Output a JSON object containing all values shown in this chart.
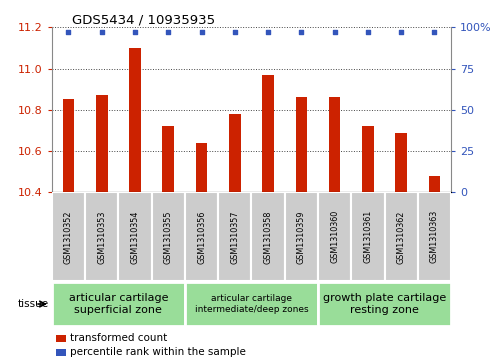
{
  "title": "GDS5434 / 10935935",
  "samples": [
    "GSM1310352",
    "GSM1310353",
    "GSM1310354",
    "GSM1310355",
    "GSM1310356",
    "GSM1310357",
    "GSM1310358",
    "GSM1310359",
    "GSM1310360",
    "GSM1310361",
    "GSM1310362",
    "GSM1310363"
  ],
  "bar_values": [
    10.85,
    10.87,
    11.1,
    10.72,
    10.64,
    10.78,
    10.97,
    10.86,
    10.86,
    10.72,
    10.69,
    10.48
  ],
  "percentile_values": [
    97,
    97,
    97,
    97,
    97,
    97,
    97,
    97,
    97,
    97,
    97,
    97
  ],
  "bar_color": "#cc2200",
  "percentile_color": "#3355bb",
  "ylim_left": [
    10.4,
    11.2
  ],
  "ylim_right": [
    0,
    100
  ],
  "yticks_left": [
    10.4,
    10.6,
    10.8,
    11.0,
    11.2
  ],
  "yticks_right": [
    0,
    25,
    50,
    75,
    100
  ],
  "tissue_groups": [
    {
      "label": "articular cartilage\nsuperficial zone",
      "start": 0,
      "end": 4,
      "fontsize": 8
    },
    {
      "label": "articular cartilage\nintermediate/deep zones",
      "start": 4,
      "end": 8,
      "fontsize": 6.5
    },
    {
      "label": "growth plate cartilage\nresting zone",
      "start": 8,
      "end": 12,
      "fontsize": 8
    }
  ],
  "tissue_group_color": "#99dd99",
  "sample_box_color": "#cccccc",
  "legend_bar_label": "transformed count",
  "legend_pct_label": "percentile rank within the sample",
  "tissue_label": "tissue"
}
